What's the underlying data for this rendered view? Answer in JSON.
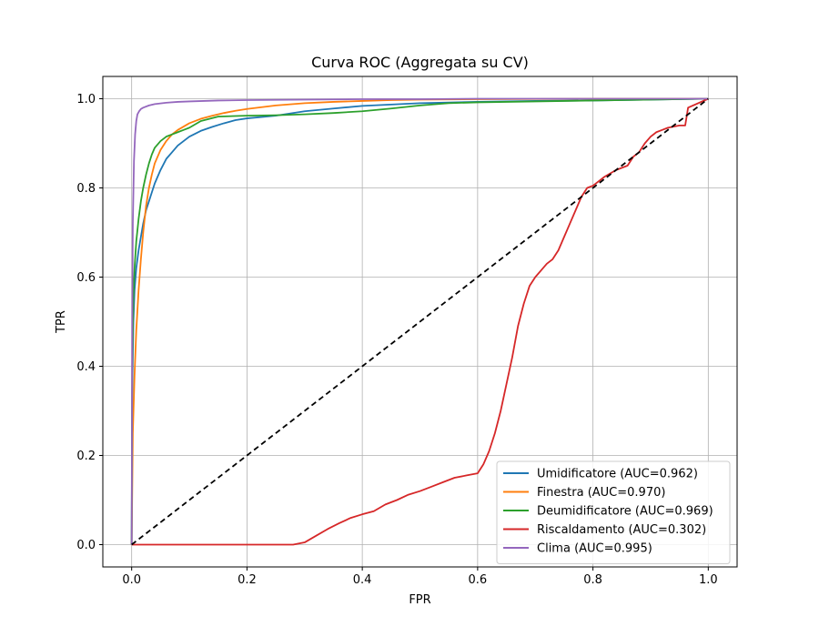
{
  "chart_data": {
    "type": "line",
    "title": "Curva ROC (Aggregata su CV)",
    "xlabel": "FPR",
    "ylabel": "TPR",
    "xlim": [
      -0.05,
      1.05
    ],
    "ylim": [
      -0.05,
      1.05
    ],
    "xticks": [
      "0.0",
      "0.2",
      "0.4",
      "0.6",
      "0.8",
      "1.0"
    ],
    "yticks": [
      "0.0",
      "0.2",
      "0.4",
      "0.6",
      "0.8",
      "1.0"
    ],
    "grid": true,
    "legend_position": "lower-right",
    "series": [
      {
        "name": "Umidificatore (AUC=0.962)",
        "color": "#1f77b4",
        "x": [
          0.0,
          0.001,
          0.003,
          0.005,
          0.008,
          0.012,
          0.016,
          0.02,
          0.025,
          0.03,
          0.035,
          0.04,
          0.05,
          0.06,
          0.07,
          0.08,
          0.09,
          0.1,
          0.12,
          0.14,
          0.16,
          0.18,
          0.2,
          0.25,
          0.3,
          0.35,
          0.4,
          0.45,
          0.5,
          0.6,
          0.7,
          0.8,
          0.85,
          0.9,
          0.95,
          1.0
        ],
        "y": [
          0.0,
          0.35,
          0.5,
          0.57,
          0.62,
          0.66,
          0.69,
          0.72,
          0.75,
          0.77,
          0.79,
          0.81,
          0.84,
          0.865,
          0.88,
          0.895,
          0.905,
          0.915,
          0.928,
          0.937,
          0.945,
          0.952,
          0.956,
          0.962,
          0.972,
          0.978,
          0.984,
          0.987,
          0.99,
          0.993,
          0.995,
          0.996,
          0.997,
          0.998,
          0.999,
          1.0
        ]
      },
      {
        "name": "Finestra (AUC=0.970)",
        "color": "#ff7f0e",
        "x": [
          0.0,
          0.002,
          0.005,
          0.008,
          0.012,
          0.016,
          0.02,
          0.025,
          0.03,
          0.035,
          0.04,
          0.05,
          0.06,
          0.07,
          0.08,
          0.1,
          0.12,
          0.14,
          0.16,
          0.18,
          0.2,
          0.25,
          0.3,
          0.35,
          0.4,
          0.45,
          0.5,
          0.6,
          0.7,
          0.8,
          1.0
        ],
        "y": [
          0.0,
          0.25,
          0.38,
          0.48,
          0.57,
          0.64,
          0.7,
          0.76,
          0.8,
          0.83,
          0.855,
          0.885,
          0.905,
          0.92,
          0.93,
          0.945,
          0.955,
          0.962,
          0.968,
          0.973,
          0.977,
          0.985,
          0.99,
          0.993,
          0.995,
          0.997,
          0.998,
          0.999,
          0.9995,
          1.0,
          1.0
        ]
      },
      {
        "name": "Deumidificatore (AUC=0.969)",
        "color": "#2ca02c",
        "x": [
          0.0,
          0.001,
          0.003,
          0.005,
          0.008,
          0.012,
          0.016,
          0.02,
          0.025,
          0.03,
          0.035,
          0.04,
          0.05,
          0.06,
          0.07,
          0.08,
          0.09,
          0.1,
          0.12,
          0.15,
          0.2,
          0.25,
          0.3,
          0.35,
          0.4,
          0.45,
          0.5,
          0.55,
          0.6,
          0.7,
          0.8,
          0.9,
          1.0
        ],
        "y": [
          0.0,
          0.4,
          0.55,
          0.62,
          0.68,
          0.73,
          0.77,
          0.8,
          0.83,
          0.855,
          0.875,
          0.89,
          0.905,
          0.915,
          0.92,
          0.925,
          0.93,
          0.935,
          0.95,
          0.96,
          0.962,
          0.963,
          0.965,
          0.968,
          0.972,
          0.978,
          0.985,
          0.99,
          0.992,
          0.994,
          0.996,
          0.998,
          1.0
        ]
      },
      {
        "name": "Riscaldamento (AUC=0.302)",
        "color": "#d62728",
        "x": [
          0.0,
          0.1,
          0.2,
          0.28,
          0.3,
          0.32,
          0.34,
          0.36,
          0.38,
          0.4,
          0.42,
          0.44,
          0.46,
          0.48,
          0.5,
          0.52,
          0.54,
          0.56,
          0.58,
          0.6,
          0.61,
          0.62,
          0.63,
          0.64,
          0.65,
          0.66,
          0.67,
          0.68,
          0.69,
          0.7,
          0.71,
          0.72,
          0.73,
          0.74,
          0.75,
          0.76,
          0.77,
          0.78,
          0.79,
          0.8,
          0.81,
          0.82,
          0.84,
          0.86,
          0.87,
          0.88,
          0.89,
          0.9,
          0.91,
          0.92,
          0.93,
          0.95,
          0.96,
          0.965,
          1.0
        ],
        "y": [
          0.0,
          0.0,
          0.0,
          0.0,
          0.005,
          0.02,
          0.035,
          0.048,
          0.06,
          0.068,
          0.075,
          0.09,
          0.1,
          0.112,
          0.12,
          0.13,
          0.14,
          0.15,
          0.155,
          0.16,
          0.18,
          0.21,
          0.25,
          0.3,
          0.36,
          0.42,
          0.49,
          0.54,
          0.58,
          0.6,
          0.615,
          0.63,
          0.64,
          0.66,
          0.69,
          0.72,
          0.75,
          0.78,
          0.8,
          0.805,
          0.815,
          0.825,
          0.84,
          0.85,
          0.87,
          0.88,
          0.9,
          0.915,
          0.925,
          0.93,
          0.935,
          0.94,
          0.94,
          0.98,
          1.0
        ]
      },
      {
        "name": "Clima (AUC=0.995)",
        "color": "#9467bd",
        "x": [
          0.0,
          0.001,
          0.002,
          0.004,
          0.006,
          0.008,
          0.01,
          0.013,
          0.016,
          0.02,
          0.03,
          0.04,
          0.06,
          0.08,
          0.1,
          0.15,
          0.2,
          0.3,
          0.4,
          0.5,
          0.6,
          0.8,
          1.0
        ],
        "y": [
          0.0,
          0.5,
          0.72,
          0.86,
          0.92,
          0.95,
          0.965,
          0.972,
          0.977,
          0.98,
          0.985,
          0.988,
          0.991,
          0.993,
          0.994,
          0.996,
          0.997,
          0.998,
          0.999,
          0.999,
          1.0,
          1.0,
          1.0
        ]
      },
      {
        "name": "",
        "color": "#000000",
        "dashed": true,
        "x": [
          0.0,
          1.0
        ],
        "y": [
          0.0,
          1.0
        ]
      }
    ]
  }
}
